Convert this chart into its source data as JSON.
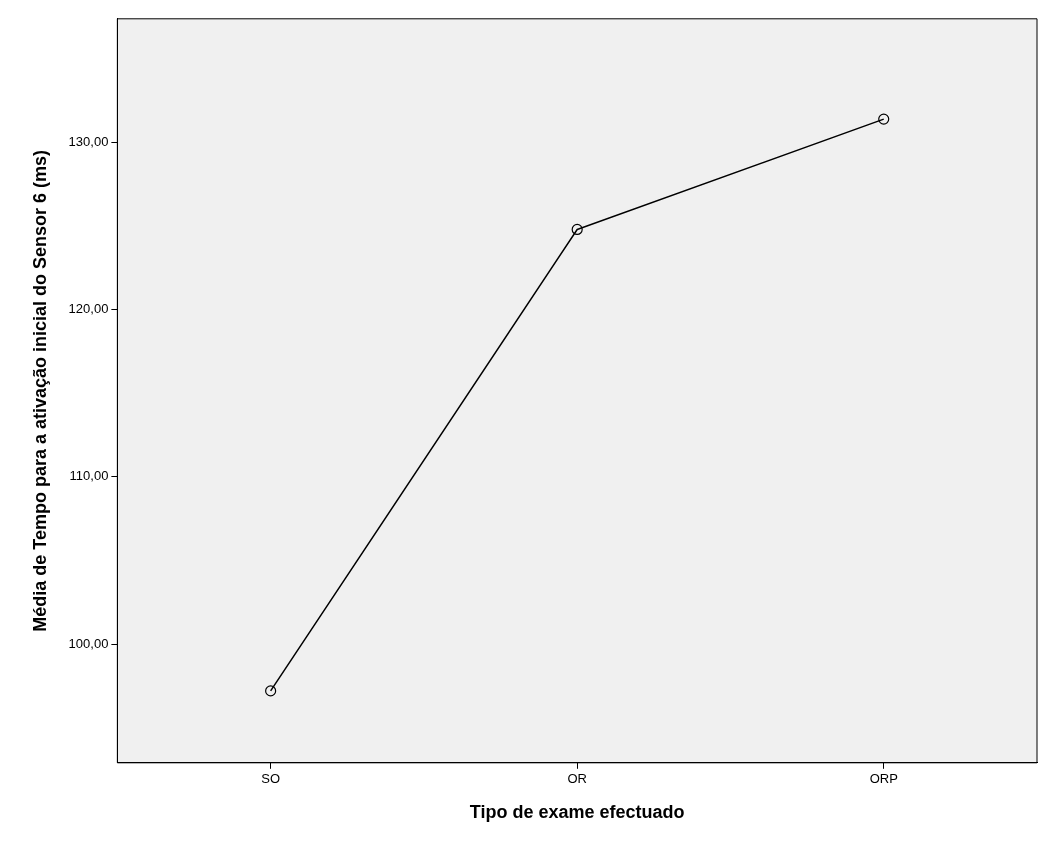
{
  "chart_data": {
    "type": "line",
    "xlabel": "Tipo de exame efectuado",
    "ylabel": "Média de Tempo para a ativação inicial do Sensor 6 (ms)",
    "categories": [
      "SO",
      "OR",
      "ORP"
    ],
    "series": [
      {
        "color": "#000000",
        "values": [
          97.2,
          124.8,
          131.4
        ]
      }
    ],
    "ylim": [
      92.9,
      137.4
    ],
    "yticks": [
      {
        "value": 100,
        "label": "100,00"
      },
      {
        "value": 110,
        "label": "110,00"
      },
      {
        "value": 120,
        "label": "120,00"
      },
      {
        "value": 130,
        "label": "130,00"
      }
    ],
    "grid": false,
    "legend": false,
    "marker": "circle",
    "line_style": "solid"
  }
}
